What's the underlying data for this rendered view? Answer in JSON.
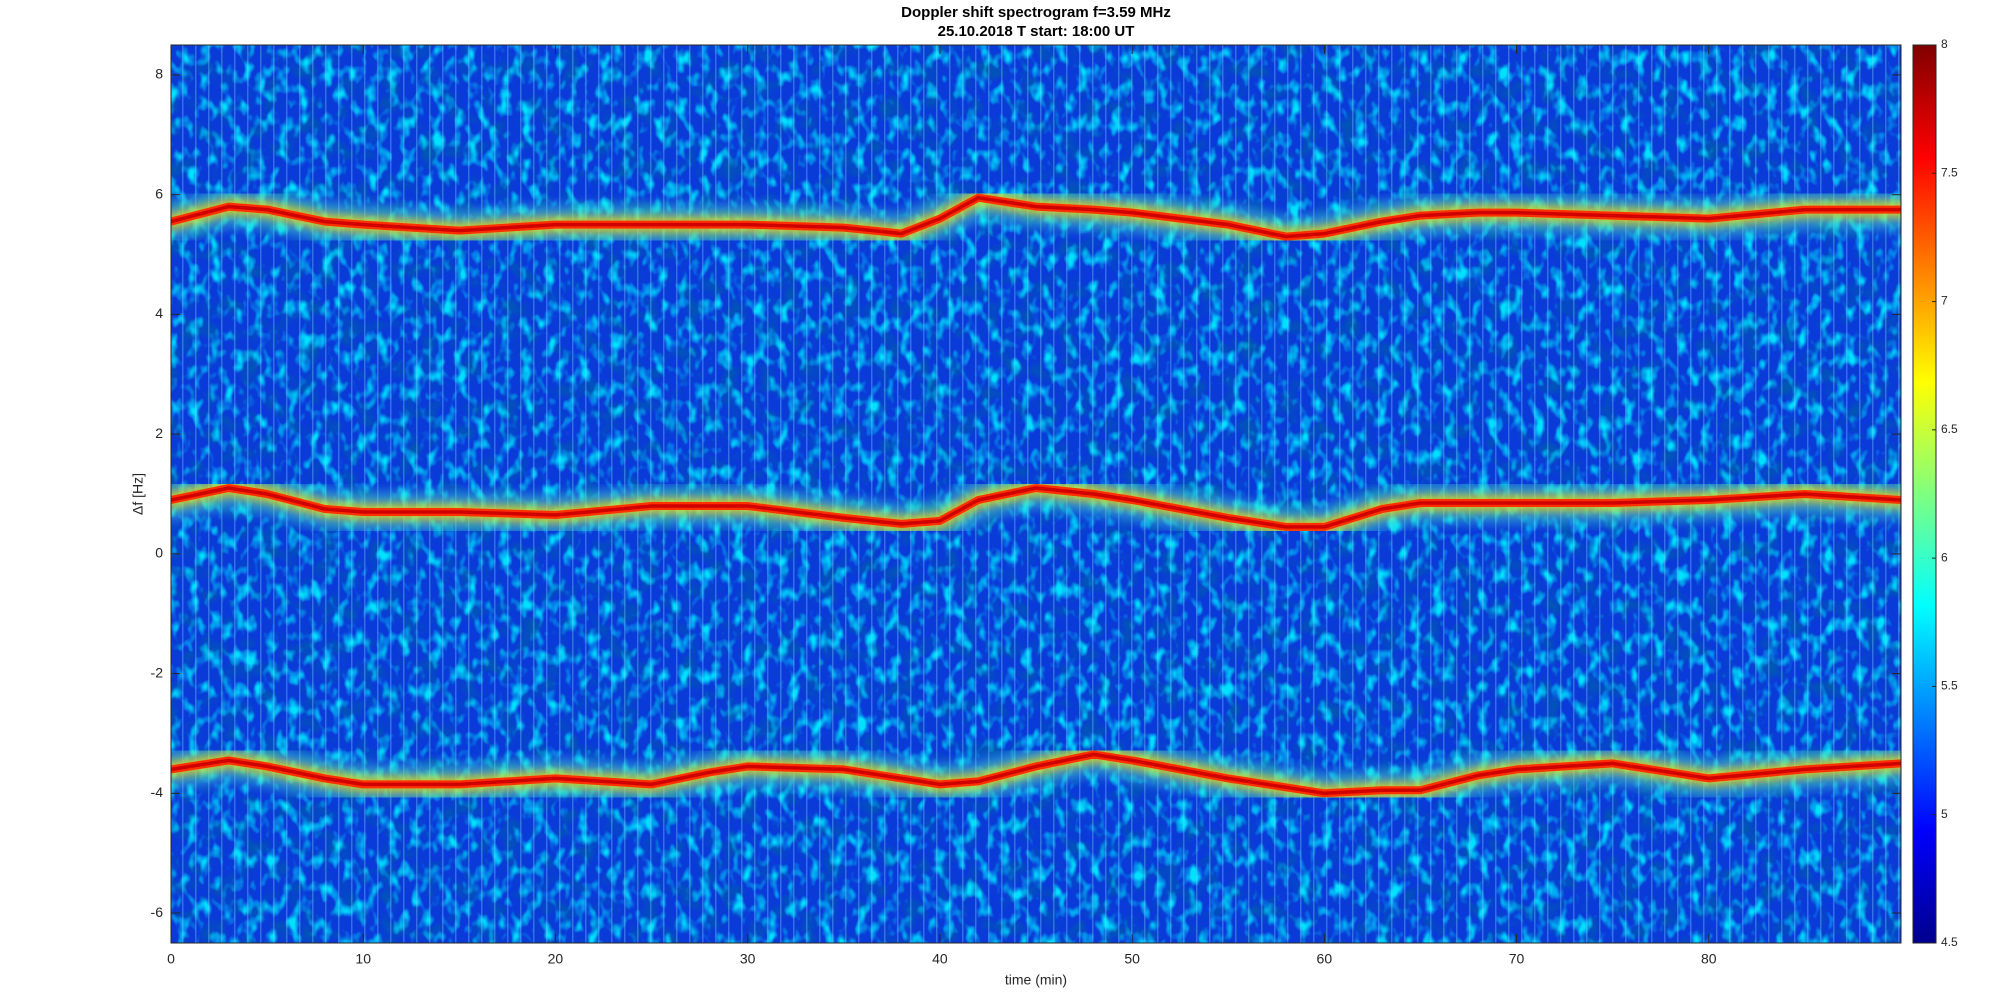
{
  "chart_data": {
    "type": "spectrogram",
    "title": "Doppler shift spectrogram f=3.59 MHz",
    "subtitle": "25.10.2018   T start: 18:00 UT",
    "x_label": "time (min)",
    "y_label": "Δf [Hz]",
    "xlim": [
      0,
      90
    ],
    "xticks": [
      0,
      10,
      20,
      30,
      40,
      50,
      60,
      70,
      80
    ],
    "ylim": [
      -6.5,
      8.5
    ],
    "yticks": [
      -6,
      -4,
      -2,
      0,
      2,
      4,
      6,
      8
    ],
    "clim": [
      4.5,
      8
    ],
    "cticks": [
      4.5,
      5,
      5.5,
      6,
      6.5,
      7,
      7.5,
      8
    ],
    "x": [
      0,
      3,
      5,
      8,
      10,
      15,
      20,
      25,
      28,
      30,
      35,
      38,
      40,
      42,
      45,
      48,
      50,
      55,
      58,
      60,
      63,
      65,
      68,
      70,
      75,
      80,
      85,
      90
    ],
    "series": [
      {
        "color": "#d00000",
        "values": [
          5.55,
          5.8,
          5.75,
          5.55,
          5.5,
          5.4,
          5.5,
          5.5,
          5.5,
          5.5,
          5.45,
          5.35,
          5.6,
          5.95,
          5.8,
          5.75,
          5.7,
          5.5,
          5.3,
          5.35,
          5.55,
          5.65,
          5.7,
          5.7,
          5.65,
          5.6,
          5.75,
          5.75
        ]
      },
      {
        "color": "#d00000",
        "values": [
          0.9,
          1.1,
          1.0,
          0.75,
          0.7,
          0.7,
          0.65,
          0.8,
          0.8,
          0.8,
          0.6,
          0.5,
          0.55,
          0.9,
          1.1,
          1.0,
          0.9,
          0.6,
          0.45,
          0.45,
          0.75,
          0.85,
          0.85,
          0.85,
          0.85,
          0.9,
          1.0,
          0.9
        ]
      },
      {
        "color": "#d00000",
        "values": [
          -3.6,
          -3.45,
          -3.55,
          -3.75,
          -3.85,
          -3.85,
          -3.75,
          -3.85,
          -3.65,
          -3.55,
          -3.6,
          -3.75,
          -3.85,
          -3.8,
          -3.55,
          -3.35,
          -3.45,
          -3.75,
          -3.9,
          -4.0,
          -3.95,
          -3.95,
          -3.7,
          -3.6,
          -3.5,
          -3.75,
          -3.6,
          -3.5
        ]
      }
    ]
  }
}
